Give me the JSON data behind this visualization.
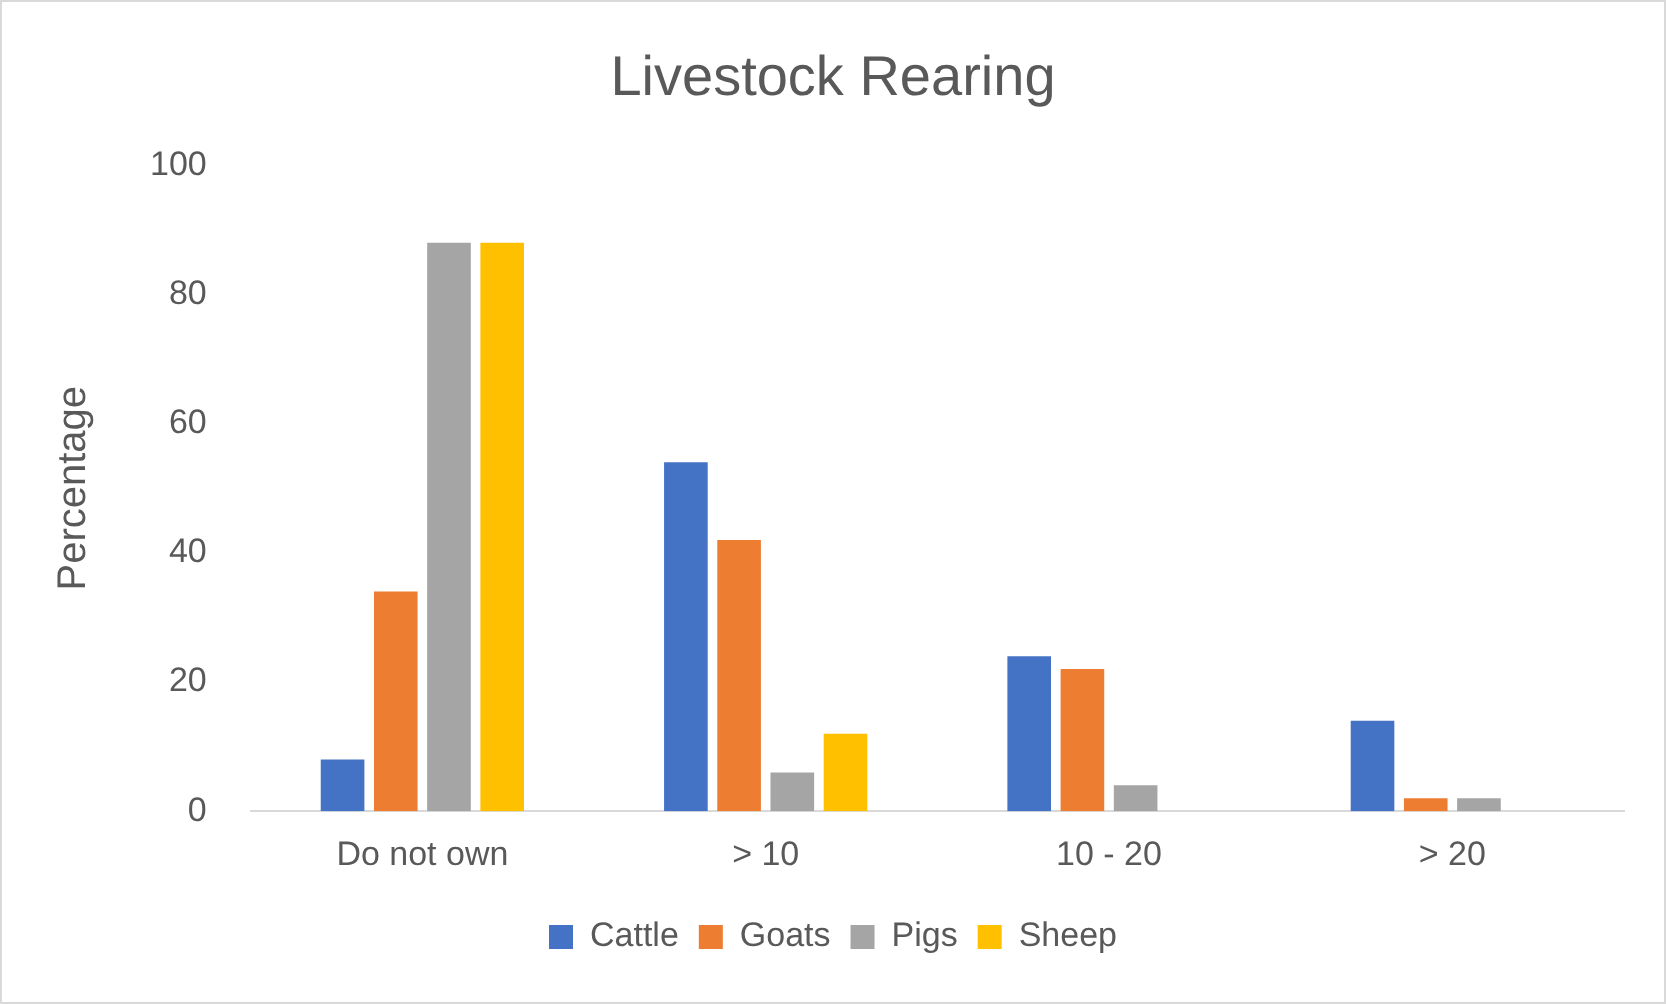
{
  "chart_data": {
    "type": "bar",
    "title": "Livestock Rearing",
    "ylabel": "Percentage",
    "categories": [
      "Do not own",
      "> 10",
      "10 - 20",
      "> 20"
    ],
    "series": [
      {
        "name": "Cattle",
        "color": "#4472c4",
        "values": [
          8,
          54,
          24,
          14
        ]
      },
      {
        "name": "Goats",
        "color": "#ed7d31",
        "values": [
          34,
          42,
          22,
          2
        ]
      },
      {
        "name": "Pigs",
        "color": "#a5a5a5",
        "values": [
          88,
          6,
          4,
          2
        ]
      },
      {
        "name": "Sheep",
        "color": "#ffc000",
        "values": [
          88,
          12,
          0,
          0
        ]
      }
    ],
    "ylim": [
      0,
      100
    ],
    "yticks": [
      0,
      20,
      40,
      60,
      80,
      100
    ],
    "grid": false,
    "legend": "bottom"
  }
}
